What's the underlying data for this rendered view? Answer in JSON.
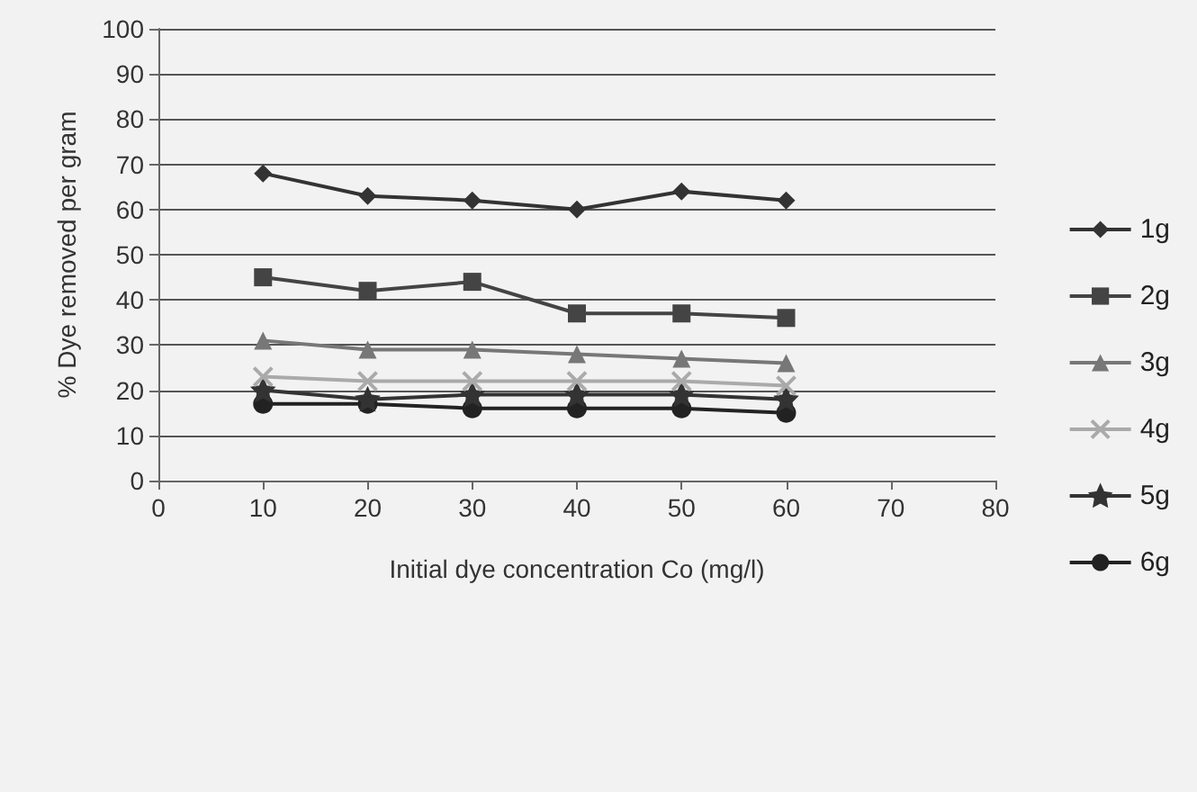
{
  "chart_data": {
    "type": "line",
    "xlabel": "Initial dye concentration Co (mg/l)",
    "ylabel": "% Dye removed per gram",
    "x": [
      10,
      20,
      30,
      40,
      50,
      60
    ],
    "xlim": [
      0,
      80
    ],
    "xticks": [
      0,
      10,
      20,
      30,
      40,
      50,
      60,
      70,
      80
    ],
    "ylim": [
      0,
      100
    ],
    "yticks": [
      0,
      10,
      20,
      30,
      40,
      50,
      60,
      70,
      80,
      90,
      100
    ],
    "grid": "y",
    "legend": "right",
    "line_style": "solid",
    "series": [
      {
        "name": "1g",
        "color": "#333333",
        "marker": "diamond",
        "values": [
          68,
          63,
          62,
          60,
          64,
          62
        ]
      },
      {
        "name": "2g",
        "color": "#444444",
        "marker": "square",
        "values": [
          45,
          42,
          44,
          37,
          37,
          36
        ]
      },
      {
        "name": "3g",
        "color": "#777777",
        "marker": "triangle",
        "values": [
          31,
          29,
          29,
          28,
          27,
          26
        ]
      },
      {
        "name": "4g",
        "color": "#aaaaaa",
        "marker": "cross",
        "values": [
          23,
          22,
          22,
          22,
          22,
          21
        ]
      },
      {
        "name": "5g",
        "color": "#333333",
        "marker": "star",
        "values": [
          20,
          18,
          19,
          19,
          19,
          18
        ]
      },
      {
        "name": "6g",
        "color": "#222222",
        "marker": "circle",
        "values": [
          17,
          17,
          16,
          16,
          16,
          15
        ]
      }
    ]
  }
}
